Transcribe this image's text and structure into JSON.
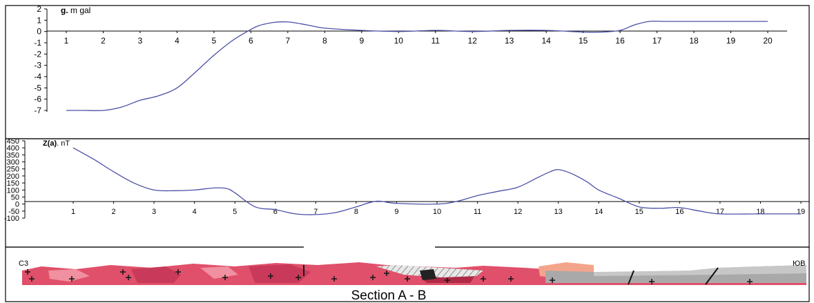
{
  "gravity": {
    "title_bold": "g.",
    "title_rest": " m gal",
    "chart_data": {
      "type": "line",
      "title": "g. m gal",
      "x": [
        1,
        1.5,
        2,
        2.5,
        3,
        3.5,
        4,
        4.5,
        5,
        5.5,
        5.9,
        6.2,
        6.6,
        7,
        7.5,
        8,
        9,
        10,
        11,
        12,
        13,
        14,
        15,
        15.5,
        16,
        16.4,
        16.8,
        17.2,
        18,
        19,
        20
      ],
      "y": [
        -7,
        -7,
        -7,
        -6.7,
        -6.1,
        -5.7,
        -5.0,
        -3.6,
        -2.1,
        -0.8,
        0,
        0.5,
        0.8,
        0.85,
        0.6,
        0.3,
        0.1,
        0,
        0.1,
        0,
        0.1,
        0.1,
        -0.05,
        -0.05,
        0.1,
        0.6,
        0.9,
        0.9,
        0.9,
        0.9,
        0.9
      ],
      "xlim": [
        1,
        20
      ],
      "ylim": [
        -7,
        2
      ],
      "yticks": [
        "2",
        "1",
        "0",
        "-1",
        "-2",
        "-3",
        "-4",
        "-5",
        "-6",
        "-7"
      ],
      "xticks": [
        "1",
        "2",
        "3",
        "4",
        "5",
        "6",
        "7",
        "8",
        "9",
        "10",
        "11",
        "12",
        "13",
        "14",
        "15",
        "16",
        "17",
        "18",
        "19",
        "20"
      ],
      "series_color": "#4a4fa6",
      "grid": false
    }
  },
  "magnetic": {
    "title_bold": "Z(a)",
    "title_rest": ". nT",
    "chart_data": {
      "type": "line",
      "title": "Z(a) . nT",
      "x": [
        1,
        1.5,
        2,
        2.5,
        3,
        3.5,
        4,
        4.5,
        4.8,
        5,
        5.5,
        6,
        6.5,
        7,
        7.5,
        8,
        8.5,
        9,
        10,
        10.5,
        11,
        11.5,
        12,
        12.5,
        12.8,
        13,
        13.3,
        13.7,
        14,
        14.5,
        15,
        15.5,
        16,
        16.5,
        17,
        18,
        19
      ],
      "y": [
        400,
        320,
        230,
        150,
        100,
        95,
        100,
        115,
        110,
        80,
        -20,
        -40,
        -70,
        -75,
        -60,
        -20,
        20,
        5,
        0,
        20,
        60,
        90,
        120,
        190,
        230,
        245,
        220,
        160,
        100,
        40,
        -20,
        -30,
        -25,
        -50,
        -70,
        -70,
        -70
      ],
      "xlim": [
        1,
        19
      ],
      "ylim": [
        -100,
        450
      ],
      "yticks": [
        "450",
        "400",
        "350",
        "300",
        "250",
        "200",
        "150",
        "100",
        "50",
        "0",
        "-50",
        "-100"
      ],
      "xticks": [
        "1",
        "2",
        "3",
        "4",
        "5",
        "6",
        "7",
        "8",
        "9",
        "10",
        "11",
        "12",
        "13",
        "14",
        "15",
        "16",
        "17",
        "18",
        "19"
      ],
      "series_color": "#4a4fa6",
      "grid": false
    }
  },
  "section": {
    "left_label": "C3",
    "right_label": "ЮВ",
    "caption": "Section A - B",
    "colors": {
      "granite": "#e0506a",
      "dark_pink": "#c93a5a",
      "light_pink": "#f090a0",
      "grey": "#a9a9a9",
      "hatch": "#dcdcdc",
      "salmon": "#f3a58c"
    }
  }
}
